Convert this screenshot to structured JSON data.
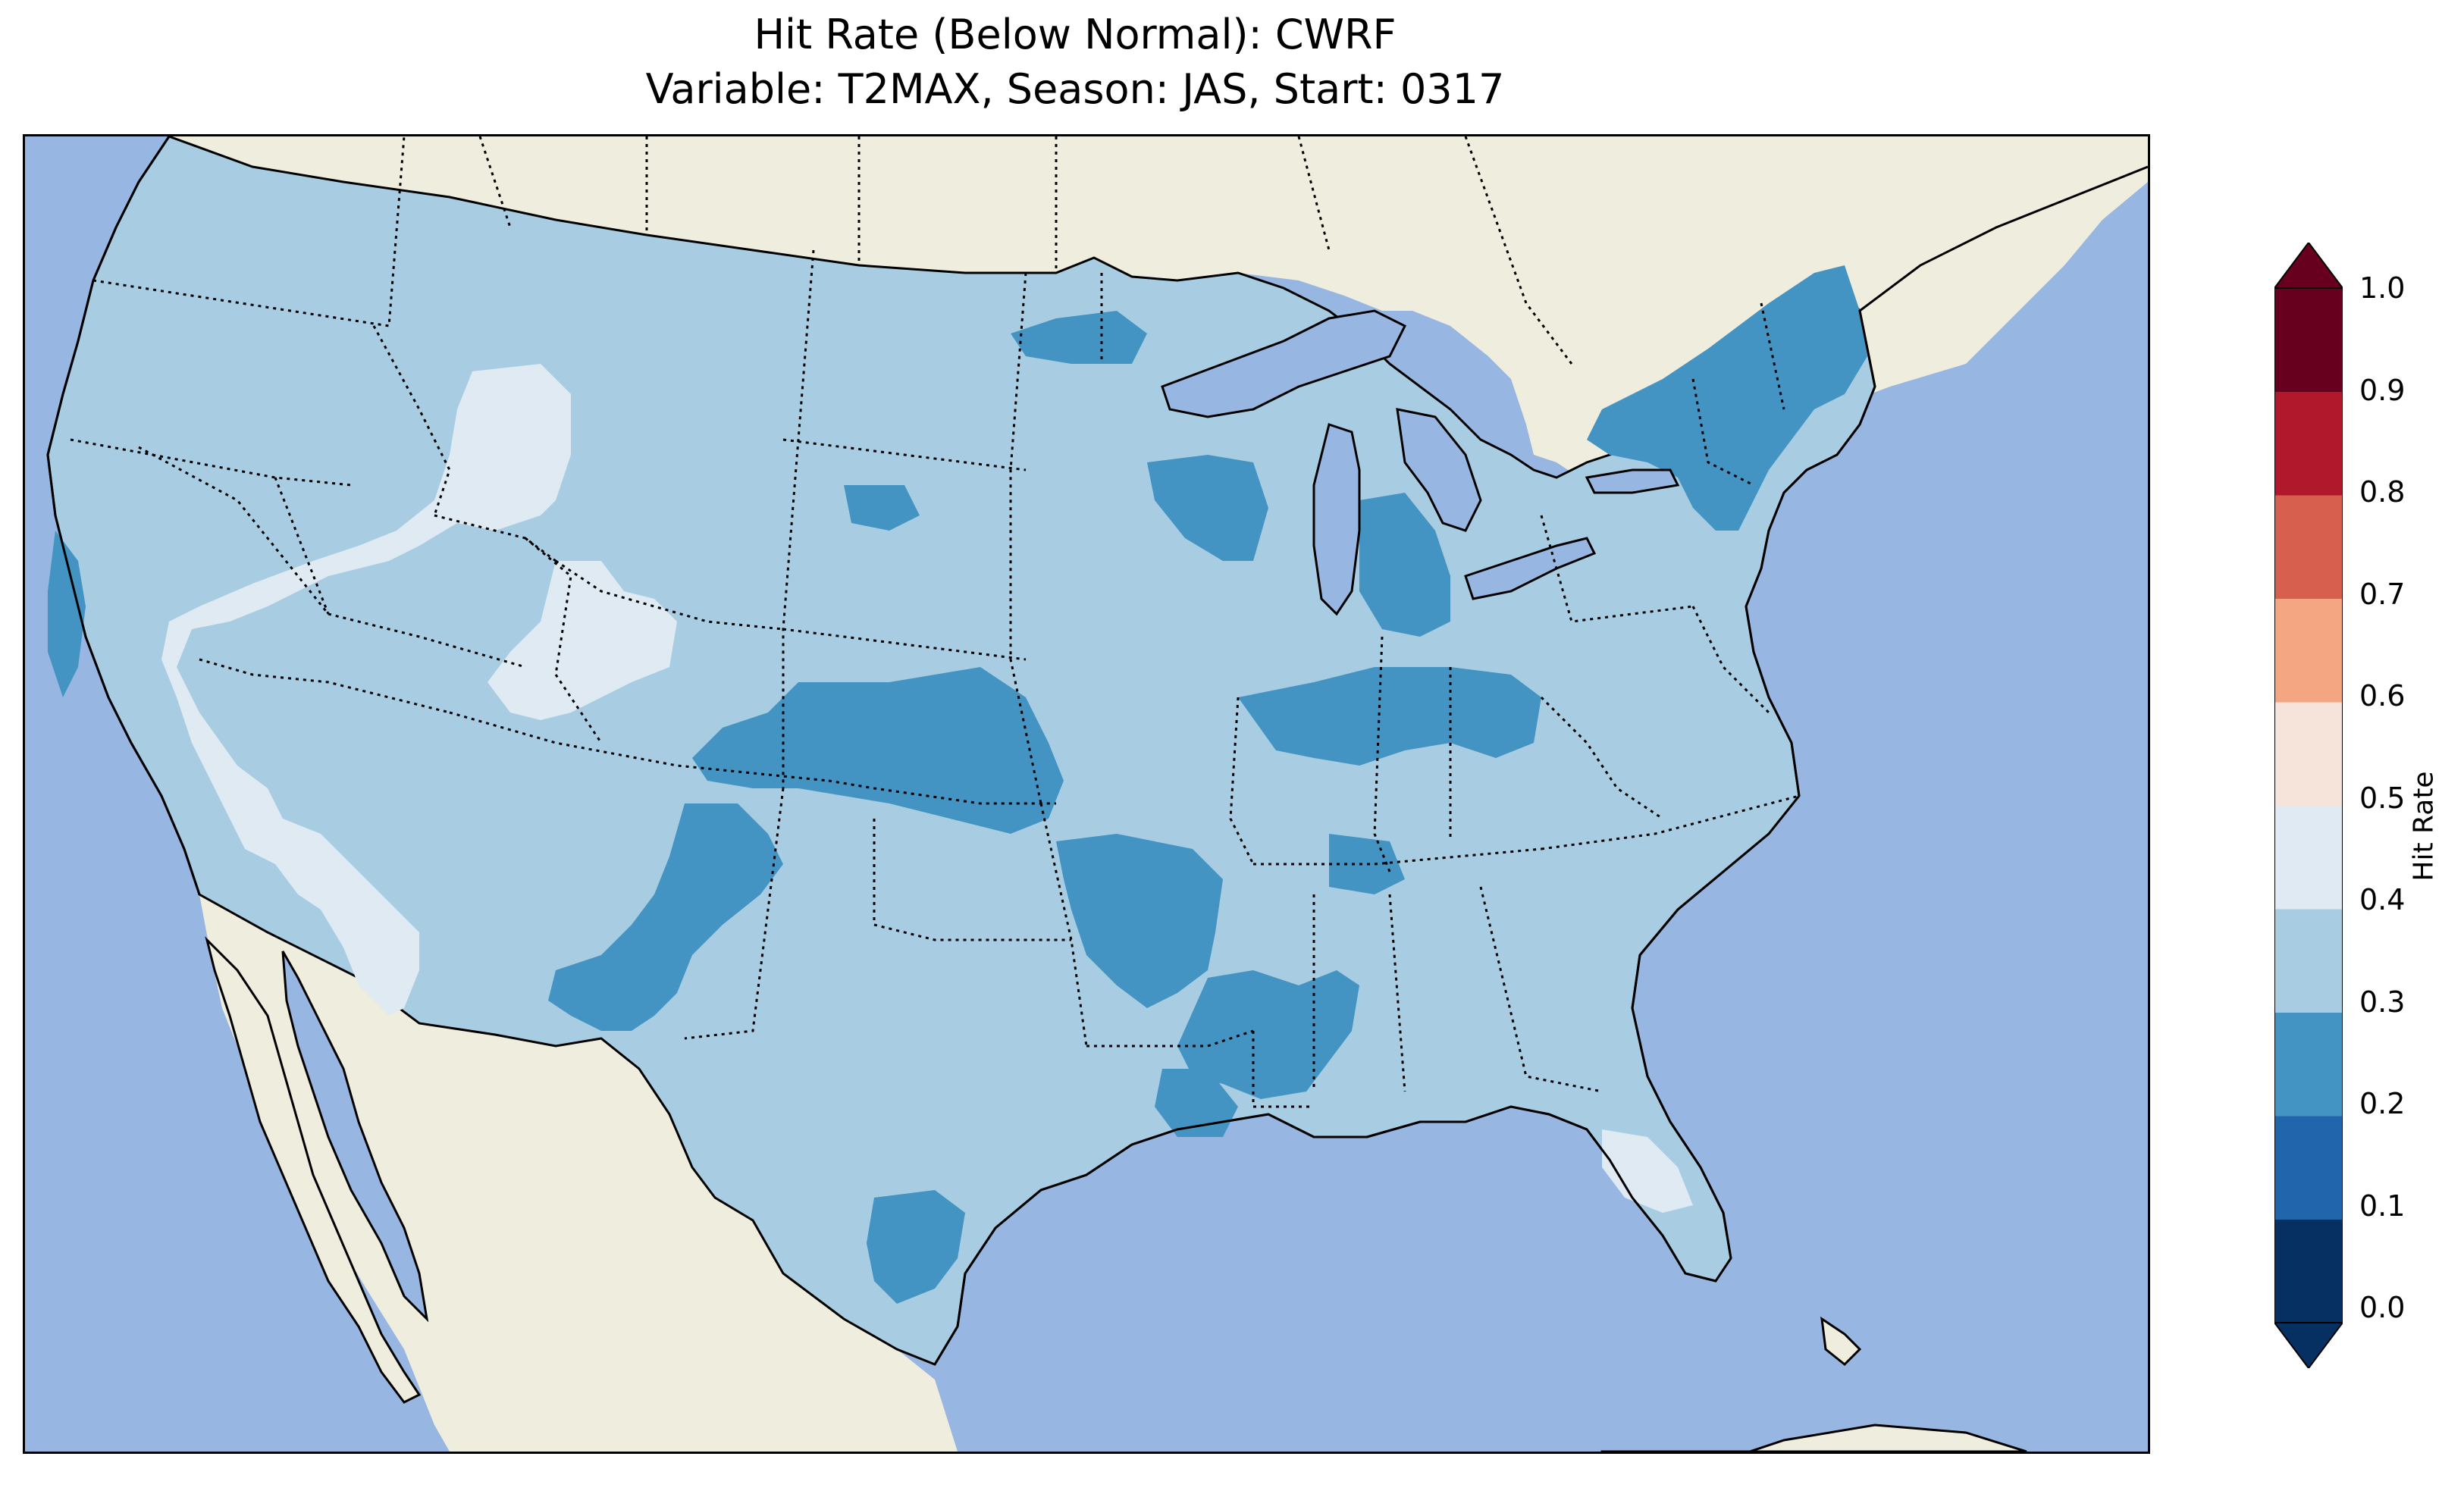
{
  "title": {
    "line1": "Hit Rate (Below Normal): CWRF",
    "line2": "Variable: T2MAX, Season: JAS, Start: 0317"
  },
  "colors": {
    "ocean": "#97b6e1",
    "land": "#efedde",
    "class_0_1": "#053061",
    "class_1_2": "#2166ac",
    "class_2_3": "#4393c3",
    "class_3_4": "#a8cde3",
    "class_4_5": "#dfeaf2",
    "class_5_6": "#f6e3da",
    "class_6_7": "#f4a582",
    "class_7_8": "#d6604d",
    "class_8_9": "#b2182b",
    "class_9_10": "#67001f"
  },
  "colorbar": {
    "label": "Hit Rate",
    "ticks": [
      "0.0",
      "0.1",
      "0.2",
      "0.3",
      "0.4",
      "0.5",
      "0.6",
      "0.7",
      "0.8",
      "0.9",
      "1.0"
    ],
    "bins": [
      "#053061",
      "#2166ac",
      "#4393c3",
      "#a8cde3",
      "#dfeaf2",
      "#f6e3da",
      "#f4a582",
      "#d6604d",
      "#b2182b",
      "#67001f"
    ],
    "extend": "both"
  },
  "map_legend_note": "Categorical hit-rate shading over the contiguous United States"
}
